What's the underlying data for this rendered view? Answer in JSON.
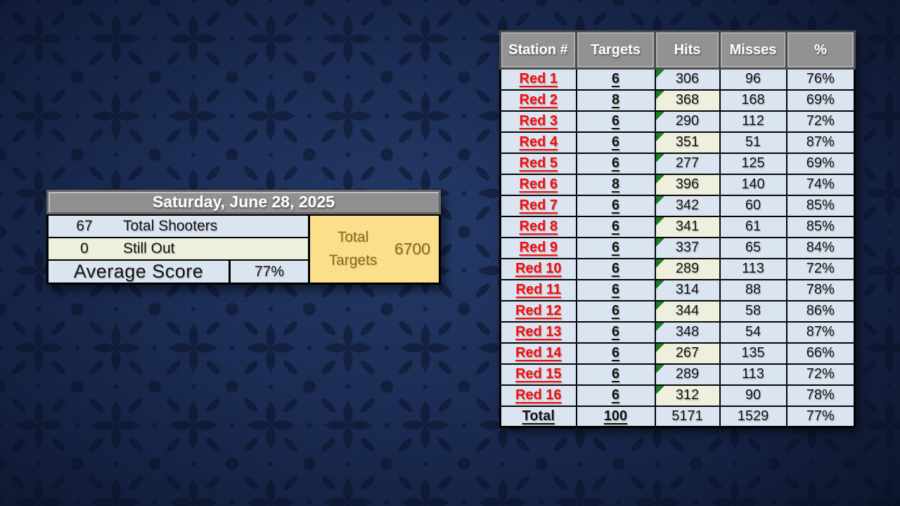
{
  "slide": {
    "background_base_color": "#1c2d55",
    "background_edge_color": "#0a1226",
    "pattern_color": "#081024"
  },
  "summary": {
    "date_title": "Saturday, June 28, 2025",
    "rows": [
      {
        "value": "67",
        "label": "Total Shooters"
      },
      {
        "value": "0",
        "label": "Still Out"
      }
    ],
    "average_label": "Average Score",
    "average_value": "77%",
    "total_targets_label": "Total Targets",
    "total_targets_value": "6700",
    "total_targets_bg": "#fbdf8b",
    "total_targets_text_color": "#8a6b1e"
  },
  "table": {
    "headers": [
      "Station #",
      "Targets",
      "Hits",
      "Misses",
      "%"
    ],
    "header_bg": "#929292",
    "cell_blue": "#dbe5f1",
    "cell_cream": "#eef0dd",
    "station_link_color": "#ee1111",
    "comment_marker_color": "#1f7d28",
    "rows": [
      {
        "station": "Red 1",
        "targets": "6",
        "hits": "306",
        "misses": "96",
        "pct": "76%",
        "hits_shaded": false,
        "comment_marker": true
      },
      {
        "station": "Red 2",
        "targets": "8",
        "hits": "368",
        "misses": "168",
        "pct": "69%",
        "hits_shaded": true,
        "comment_marker": true
      },
      {
        "station": "Red 3",
        "targets": "6",
        "hits": "290",
        "misses": "112",
        "pct": "72%",
        "hits_shaded": false,
        "comment_marker": true
      },
      {
        "station": "Red 4",
        "targets": "6",
        "hits": "351",
        "misses": "51",
        "pct": "87%",
        "hits_shaded": true,
        "comment_marker": true
      },
      {
        "station": "Red 5",
        "targets": "6",
        "hits": "277",
        "misses": "125",
        "pct": "69%",
        "hits_shaded": false,
        "comment_marker": true
      },
      {
        "station": "Red 6",
        "targets": "8",
        "hits": "396",
        "misses": "140",
        "pct": "74%",
        "hits_shaded": true,
        "comment_marker": true
      },
      {
        "station": "Red 7",
        "targets": "6",
        "hits": "342",
        "misses": "60",
        "pct": "85%",
        "hits_shaded": false,
        "comment_marker": true
      },
      {
        "station": "Red 8",
        "targets": "6",
        "hits": "341",
        "misses": "61",
        "pct": "85%",
        "hits_shaded": true,
        "comment_marker": true
      },
      {
        "station": "Red 9",
        "targets": "6",
        "hits": "337",
        "misses": "65",
        "pct": "84%",
        "hits_shaded": false,
        "comment_marker": true
      },
      {
        "station": "Red 10",
        "targets": "6",
        "hits": "289",
        "misses": "113",
        "pct": "72%",
        "hits_shaded": true,
        "comment_marker": true
      },
      {
        "station": "Red 11",
        "targets": "6",
        "hits": "314",
        "misses": "88",
        "pct": "78%",
        "hits_shaded": false,
        "comment_marker": true
      },
      {
        "station": "Red 12",
        "targets": "6",
        "hits": "344",
        "misses": "58",
        "pct": "86%",
        "hits_shaded": true,
        "comment_marker": true
      },
      {
        "station": "Red 13",
        "targets": "6",
        "hits": "348",
        "misses": "54",
        "pct": "87%",
        "hits_shaded": false,
        "comment_marker": true
      },
      {
        "station": "Red 14",
        "targets": "6",
        "hits": "267",
        "misses": "135",
        "pct": "66%",
        "hits_shaded": true,
        "comment_marker": true
      },
      {
        "station": "Red 15",
        "targets": "6",
        "hits": "289",
        "misses": "113",
        "pct": "72%",
        "hits_shaded": false,
        "comment_marker": true
      },
      {
        "station": "Red 16",
        "targets": "6",
        "hits": "312",
        "misses": "90",
        "pct": "78%",
        "hits_shaded": true,
        "comment_marker": true
      }
    ],
    "total_row": {
      "station": "Total",
      "targets": "100",
      "hits": "5171",
      "misses": "1529",
      "pct": "77%"
    }
  },
  "chart_data": {
    "type": "table",
    "title": "Saturday, June 28, 2025 — Station Scores",
    "columns": [
      "Station #",
      "Targets",
      "Hits",
      "Misses",
      "%"
    ],
    "rows": [
      [
        "Red 1",
        6,
        306,
        96,
        "76%"
      ],
      [
        "Red 2",
        8,
        368,
        168,
        "69%"
      ],
      [
        "Red 3",
        6,
        290,
        112,
        "72%"
      ],
      [
        "Red 4",
        6,
        351,
        51,
        "87%"
      ],
      [
        "Red 5",
        6,
        277,
        125,
        "69%"
      ],
      [
        "Red 6",
        8,
        396,
        140,
        "74%"
      ],
      [
        "Red 7",
        6,
        342,
        60,
        "85%"
      ],
      [
        "Red 8",
        6,
        341,
        61,
        "85%"
      ],
      [
        "Red 9",
        6,
        337,
        65,
        "84%"
      ],
      [
        "Red 10",
        6,
        289,
        113,
        "72%"
      ],
      [
        "Red 11",
        6,
        314,
        88,
        "78%"
      ],
      [
        "Red 12",
        6,
        344,
        58,
        "86%"
      ],
      [
        "Red 13",
        6,
        348,
        54,
        "87%"
      ],
      [
        "Red 14",
        6,
        267,
        135,
        "66%"
      ],
      [
        "Red 15",
        6,
        289,
        113,
        "72%"
      ],
      [
        "Red 16",
        6,
        312,
        90,
        "78%"
      ],
      [
        "Total",
        100,
        5171,
        1529,
        "77%"
      ]
    ],
    "summary": {
      "total_shooters": 67,
      "still_out": 0,
      "average_score": "77%",
      "total_targets": 6700
    }
  }
}
